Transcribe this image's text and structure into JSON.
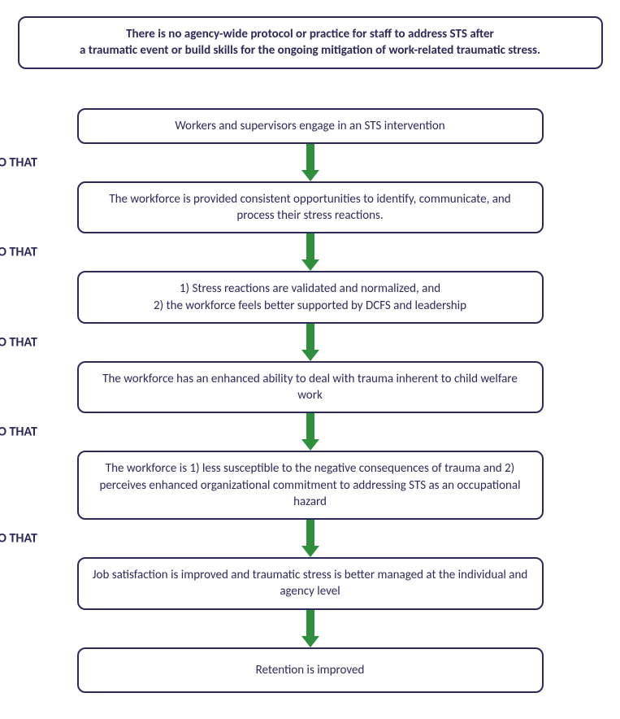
{
  "colors": {
    "border": "#2d2a5a",
    "text": "#2d2a5a",
    "so_that": "#2d2a5a",
    "arrow": "#2f8f3d",
    "background": "#ffffff"
  },
  "header": {
    "line1": "There is no agency-wide protocol or practice for staff to address STS after",
    "line2": "a traumatic event or build skills for the ongoing mitigation of work-related traumatic stress."
  },
  "so_that_label": "SO THAT",
  "boxes": [
    {
      "text": "Workers and supervisors engage in an STS intervention"
    },
    {
      "text": "The workforce is provided consistent opportunities to identify, communicate, and process their stress reactions."
    },
    {
      "text": "1)   Stress reactions are validated and normalized, and\n2) the workforce feels better supported by DCFS and leadership"
    },
    {
      "text": "The workforce has an enhanced ability to deal with trauma inherent to child welfare work"
    },
    {
      "text": "The workforce is 1) less susceptible to the negative consequences of trauma and 2) perceives enhanced organizational commitment to addressing STS as an occupational hazard"
    },
    {
      "text": "Job satisfaction is improved and traumatic stress is better managed at the individual and agency level"
    },
    {
      "text": "Retention is improved"
    }
  ],
  "connectors": [
    {
      "show_label": true
    },
    {
      "show_label": true
    },
    {
      "show_label": true
    },
    {
      "show_label": true
    },
    {
      "show_label": true
    },
    {
      "show_label": false
    }
  ]
}
